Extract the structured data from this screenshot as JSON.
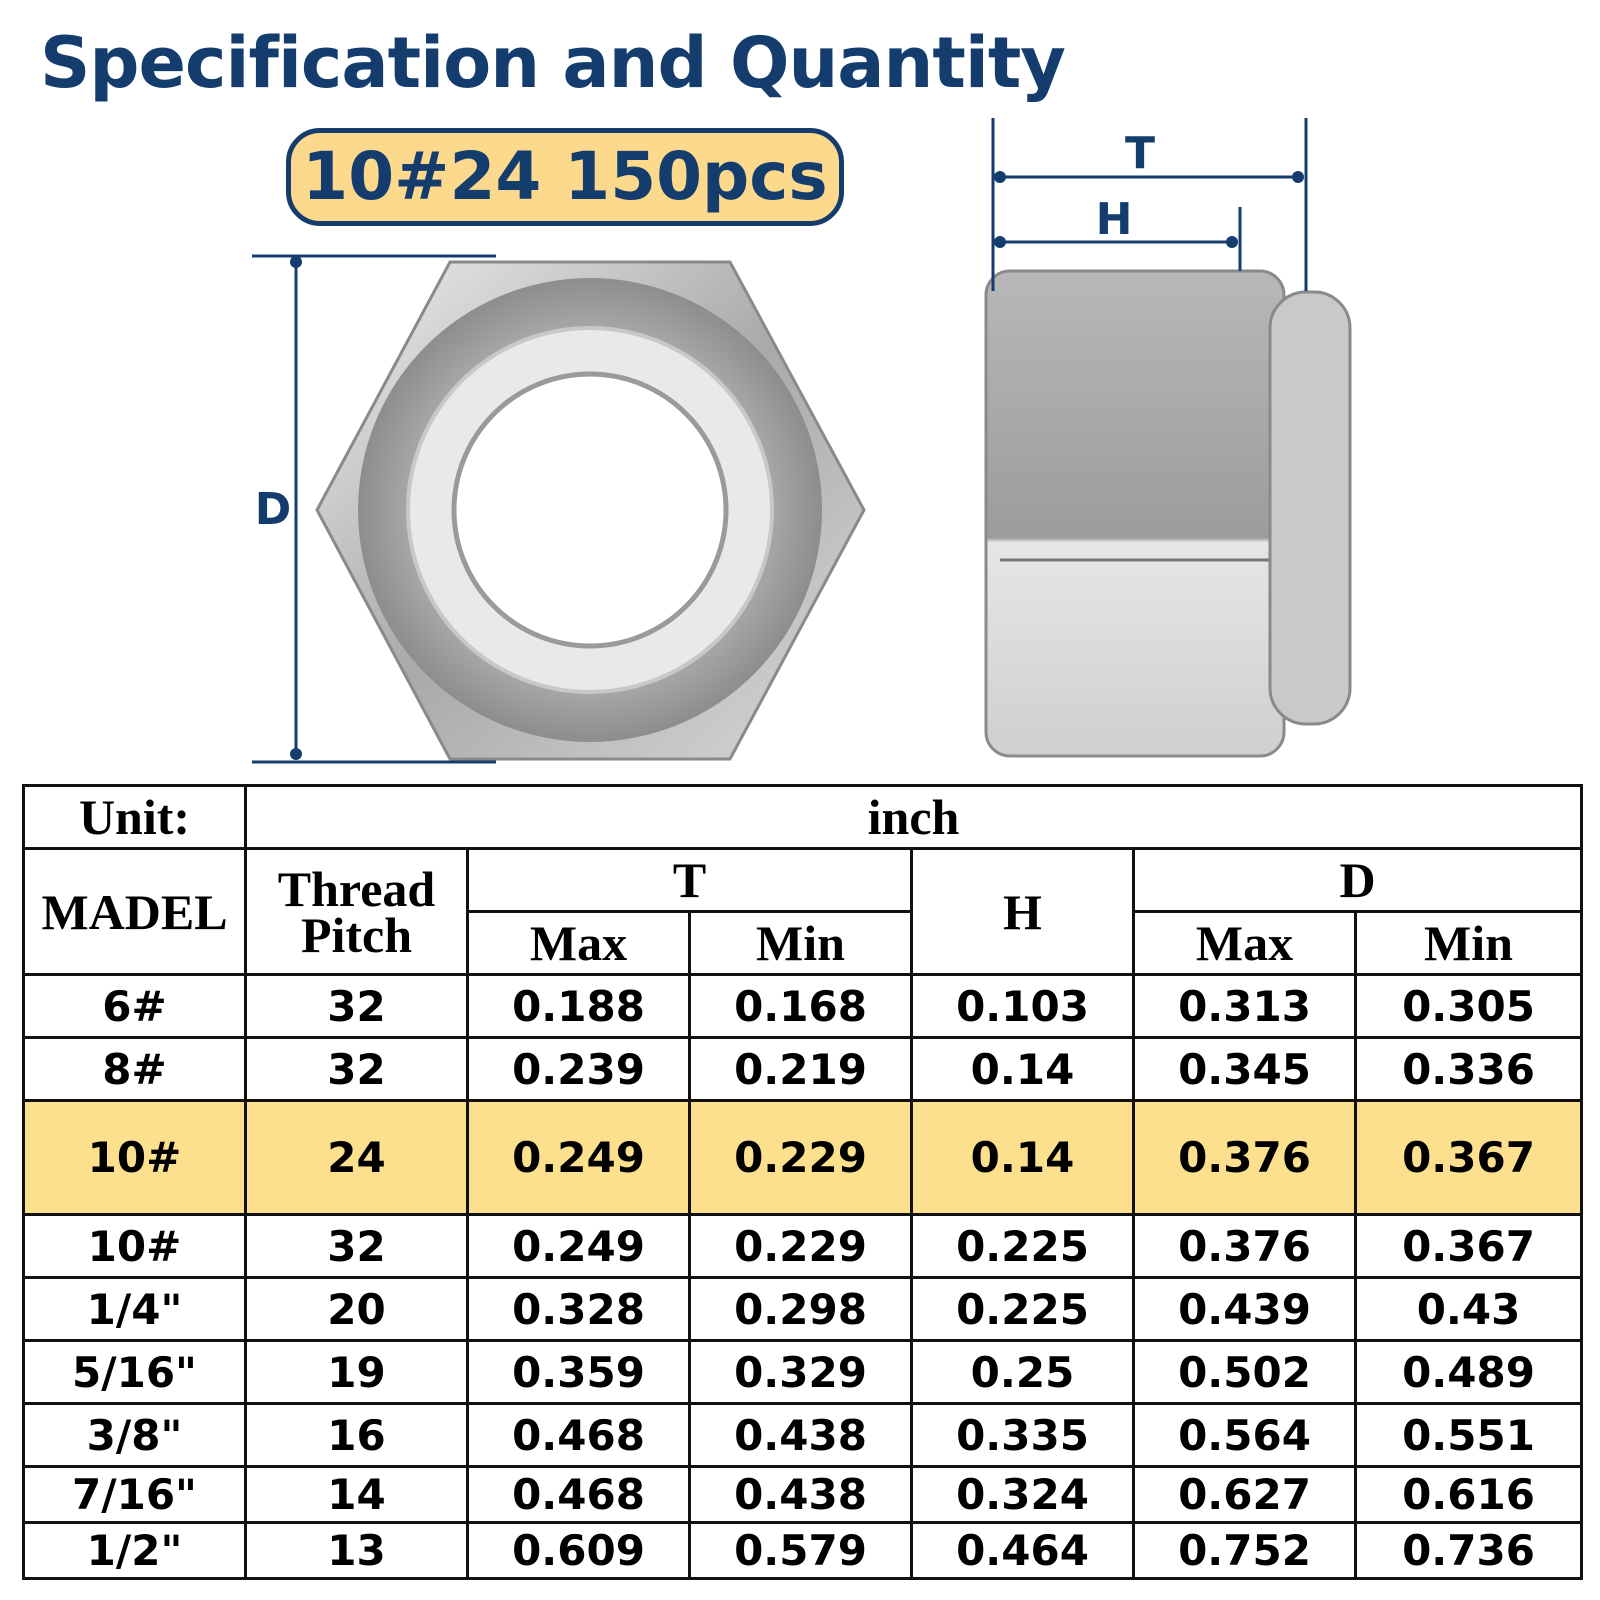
{
  "header": {
    "title": "Specification and Quantity",
    "badge": "10#24 150pcs"
  },
  "diagram": {
    "front_label": "D",
    "side_outer_label": "T",
    "side_inner_label": "H"
  },
  "table": {
    "unit_label": "Unit:",
    "unit": "inch",
    "headers": {
      "model": "MADEL",
      "thread_pitch": "Thread Pitch",
      "t": "T",
      "h": "H",
      "d": "D",
      "t_max": "Max",
      "t_min": "Min",
      "d_max": "Max",
      "d_min": "Min"
    },
    "highlight_row": 2,
    "highlight_color": "#fde08e",
    "rows": [
      [
        "6#",
        "32",
        "0.188",
        "0.168",
        "0.103",
        "0.313",
        "0.305"
      ],
      [
        "8#",
        "32",
        "0.239",
        "0.219",
        "0.14",
        "0.345",
        "0.336"
      ],
      [
        "10#",
        "24",
        "0.249",
        "0.229",
        "0.14",
        "0.376",
        "0.367"
      ],
      [
        "10#",
        "32",
        "0.249",
        "0.229",
        "0.225",
        "0.376",
        "0.367"
      ],
      [
        "1/4\"",
        "20",
        "0.328",
        "0.298",
        "0.225",
        "0.439",
        "0.43"
      ],
      [
        "5/16\"",
        "19",
        "0.359",
        "0.329",
        "0.25",
        "0.502",
        "0.489"
      ],
      [
        "3/8\"",
        "16",
        "0.468",
        "0.438",
        "0.335",
        "0.564",
        "0.551"
      ],
      [
        "7/16\"",
        "14",
        "0.468",
        "0.438",
        "0.324",
        "0.627",
        "0.616"
      ],
      [
        "1/2\"",
        "13",
        "0.609",
        "0.579",
        "0.464",
        "0.752",
        "0.736"
      ]
    ]
  }
}
